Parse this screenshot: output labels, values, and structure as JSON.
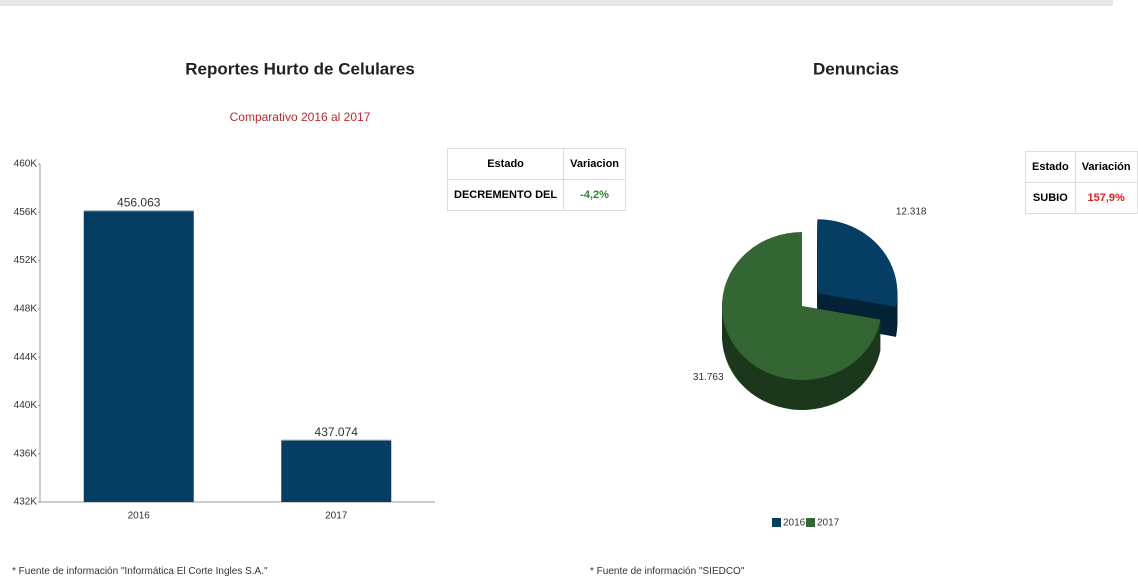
{
  "chart_data": [
    {
      "type": "bar",
      "title": "Reportes Hurto de Celulares",
      "subtitle": "Comparativo 2016 al 2017",
      "categories": [
        "2016",
        "2017"
      ],
      "values": [
        456063,
        437074
      ],
      "value_labels": [
        "456.063",
        "437.074"
      ],
      "color": "#053e62",
      "ylim": [
        432000,
        460000
      ],
      "yticks": [
        {
          "value": 432000,
          "label": "432K"
        },
        {
          "value": 436000,
          "label": "436K"
        },
        {
          "value": 440000,
          "label": "440K"
        },
        {
          "value": 444000,
          "label": "444K"
        },
        {
          "value": 448000,
          "label": "448K"
        },
        {
          "value": 452000,
          "label": "452K"
        },
        {
          "value": 456000,
          "label": "456K"
        },
        {
          "value": 460000,
          "label": "460K"
        }
      ],
      "grid": false
    },
    {
      "type": "pie",
      "title": "Denuncias",
      "categories": [
        "2016",
        "2017"
      ],
      "values": [
        12318,
        31763
      ],
      "value_labels": [
        "12.318",
        "31.763"
      ],
      "colors": [
        "#053e62",
        "#336633"
      ],
      "legend": "bottom"
    }
  ],
  "tables": [
    {
      "headers": [
        "Estado",
        "Variacion"
      ],
      "rows": [
        [
          "DECREMENTO DEL",
          "-4,2%"
        ]
      ]
    },
    {
      "headers": [
        "Estado",
        "Variación"
      ],
      "rows": [
        [
          "SUBIO",
          "157,9%"
        ]
      ]
    }
  ],
  "footnotes": [
    "* Fuente de información \"Informática El Corte Ingles S.A.\"",
    "* Fuente de información \"SIEDCO\""
  ]
}
